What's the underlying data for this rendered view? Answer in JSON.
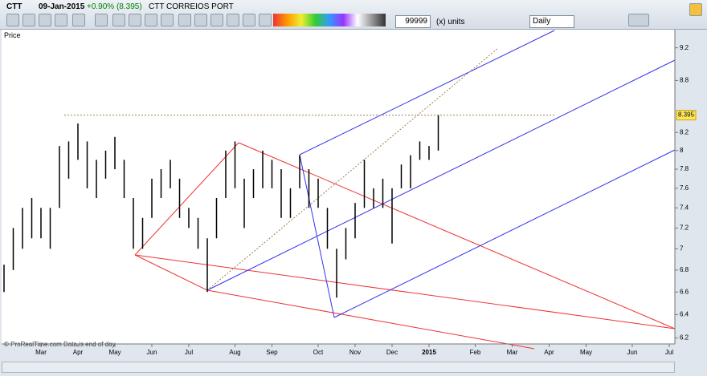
{
  "toolbar": {
    "ticker": "CTT",
    "date": "09-Jan-2015",
    "change": "+0.90% (8.395)",
    "name": "CTT CORREIOS PORT",
    "units_value": "99999",
    "units_label": "(x) units",
    "period": "Daily"
  },
  "panel": {
    "label": "Price",
    "footer": "© ProRealTime.com  Data is end of day"
  },
  "chart_data": {
    "type": "ohlc",
    "log_scale": true,
    "color": "#000000",
    "categories": [
      null,
      null,
      null,
      null,
      "Mar",
      null,
      null,
      null,
      "Apr",
      null,
      null,
      null,
      "May",
      null,
      null,
      null,
      "Jun",
      null,
      null,
      null,
      "Jul",
      null,
      null,
      null,
      null,
      "Aug",
      null,
      null,
      null,
      "Sep",
      null,
      null,
      null,
      null,
      "Oct",
      null,
      null,
      null,
      "Nov",
      null,
      null,
      null,
      "Dec",
      null,
      null,
      null,
      "2015",
      null,
      null,
      null,
      null,
      "Feb",
      null,
      null,
      null,
      "Mar",
      null,
      null,
      null,
      "Apr",
      null,
      null,
      null,
      "May",
      null,
      null,
      null,
      null,
      "Jun",
      null,
      null,
      null,
      "Jul"
    ],
    "low": [
      6.6,
      6.8,
      7.0,
      7.1,
      7.1,
      7.0,
      7.4,
      7.7,
      7.9,
      7.6,
      7.5,
      7.7,
      7.8,
      7.5,
      7.0,
      7.0,
      7.3,
      7.5,
      7.6,
      7.3,
      7.2,
      7.0,
      6.6,
      7.1,
      7.5,
      7.6,
      7.2,
      7.5,
      7.6,
      7.6,
      7.3,
      7.3,
      7.6,
      7.4,
      7.4,
      7.0,
      6.55,
      6.9,
      7.1,
      7.4,
      7.4,
      7.4,
      7.05,
      7.6,
      7.6,
      7.9,
      7.9,
      8.0,
      null,
      null,
      null,
      null,
      null,
      null,
      null,
      null,
      null,
      null,
      null,
      null,
      null,
      null,
      null,
      null,
      null,
      null,
      null,
      null,
      null,
      null,
      null,
      null,
      null
    ],
    "high": [
      6.85,
      7.2,
      7.4,
      7.5,
      7.4,
      7.4,
      8.05,
      8.1,
      8.3,
      8.1,
      7.9,
      8.0,
      8.15,
      7.9,
      7.5,
      7.3,
      7.7,
      7.8,
      7.9,
      7.7,
      7.4,
      7.3,
      7.1,
      7.5,
      8.0,
      8.1,
      7.7,
      7.8,
      8.0,
      7.9,
      7.8,
      7.6,
      7.95,
      7.8,
      7.7,
      7.4,
      7.0,
      7.2,
      7.45,
      7.9,
      7.6,
      7.7,
      7.6,
      7.85,
      7.95,
      8.1,
      8.05,
      8.4,
      null,
      null,
      null,
      null,
      null,
      null,
      null,
      null,
      null,
      null,
      null,
      null,
      null,
      null,
      null,
      null,
      null,
      null,
      null,
      null,
      null,
      null,
      null,
      null,
      null
    ],
    "last": 8.395,
    "ylim": [
      6.15,
      9.43
    ],
    "yticks": [
      6.2,
      6.4,
      6.6,
      6.8,
      7,
      7.2,
      7.4,
      7.6,
      7.8,
      8,
      8.2,
      8.8,
      9.2
    ]
  }
}
